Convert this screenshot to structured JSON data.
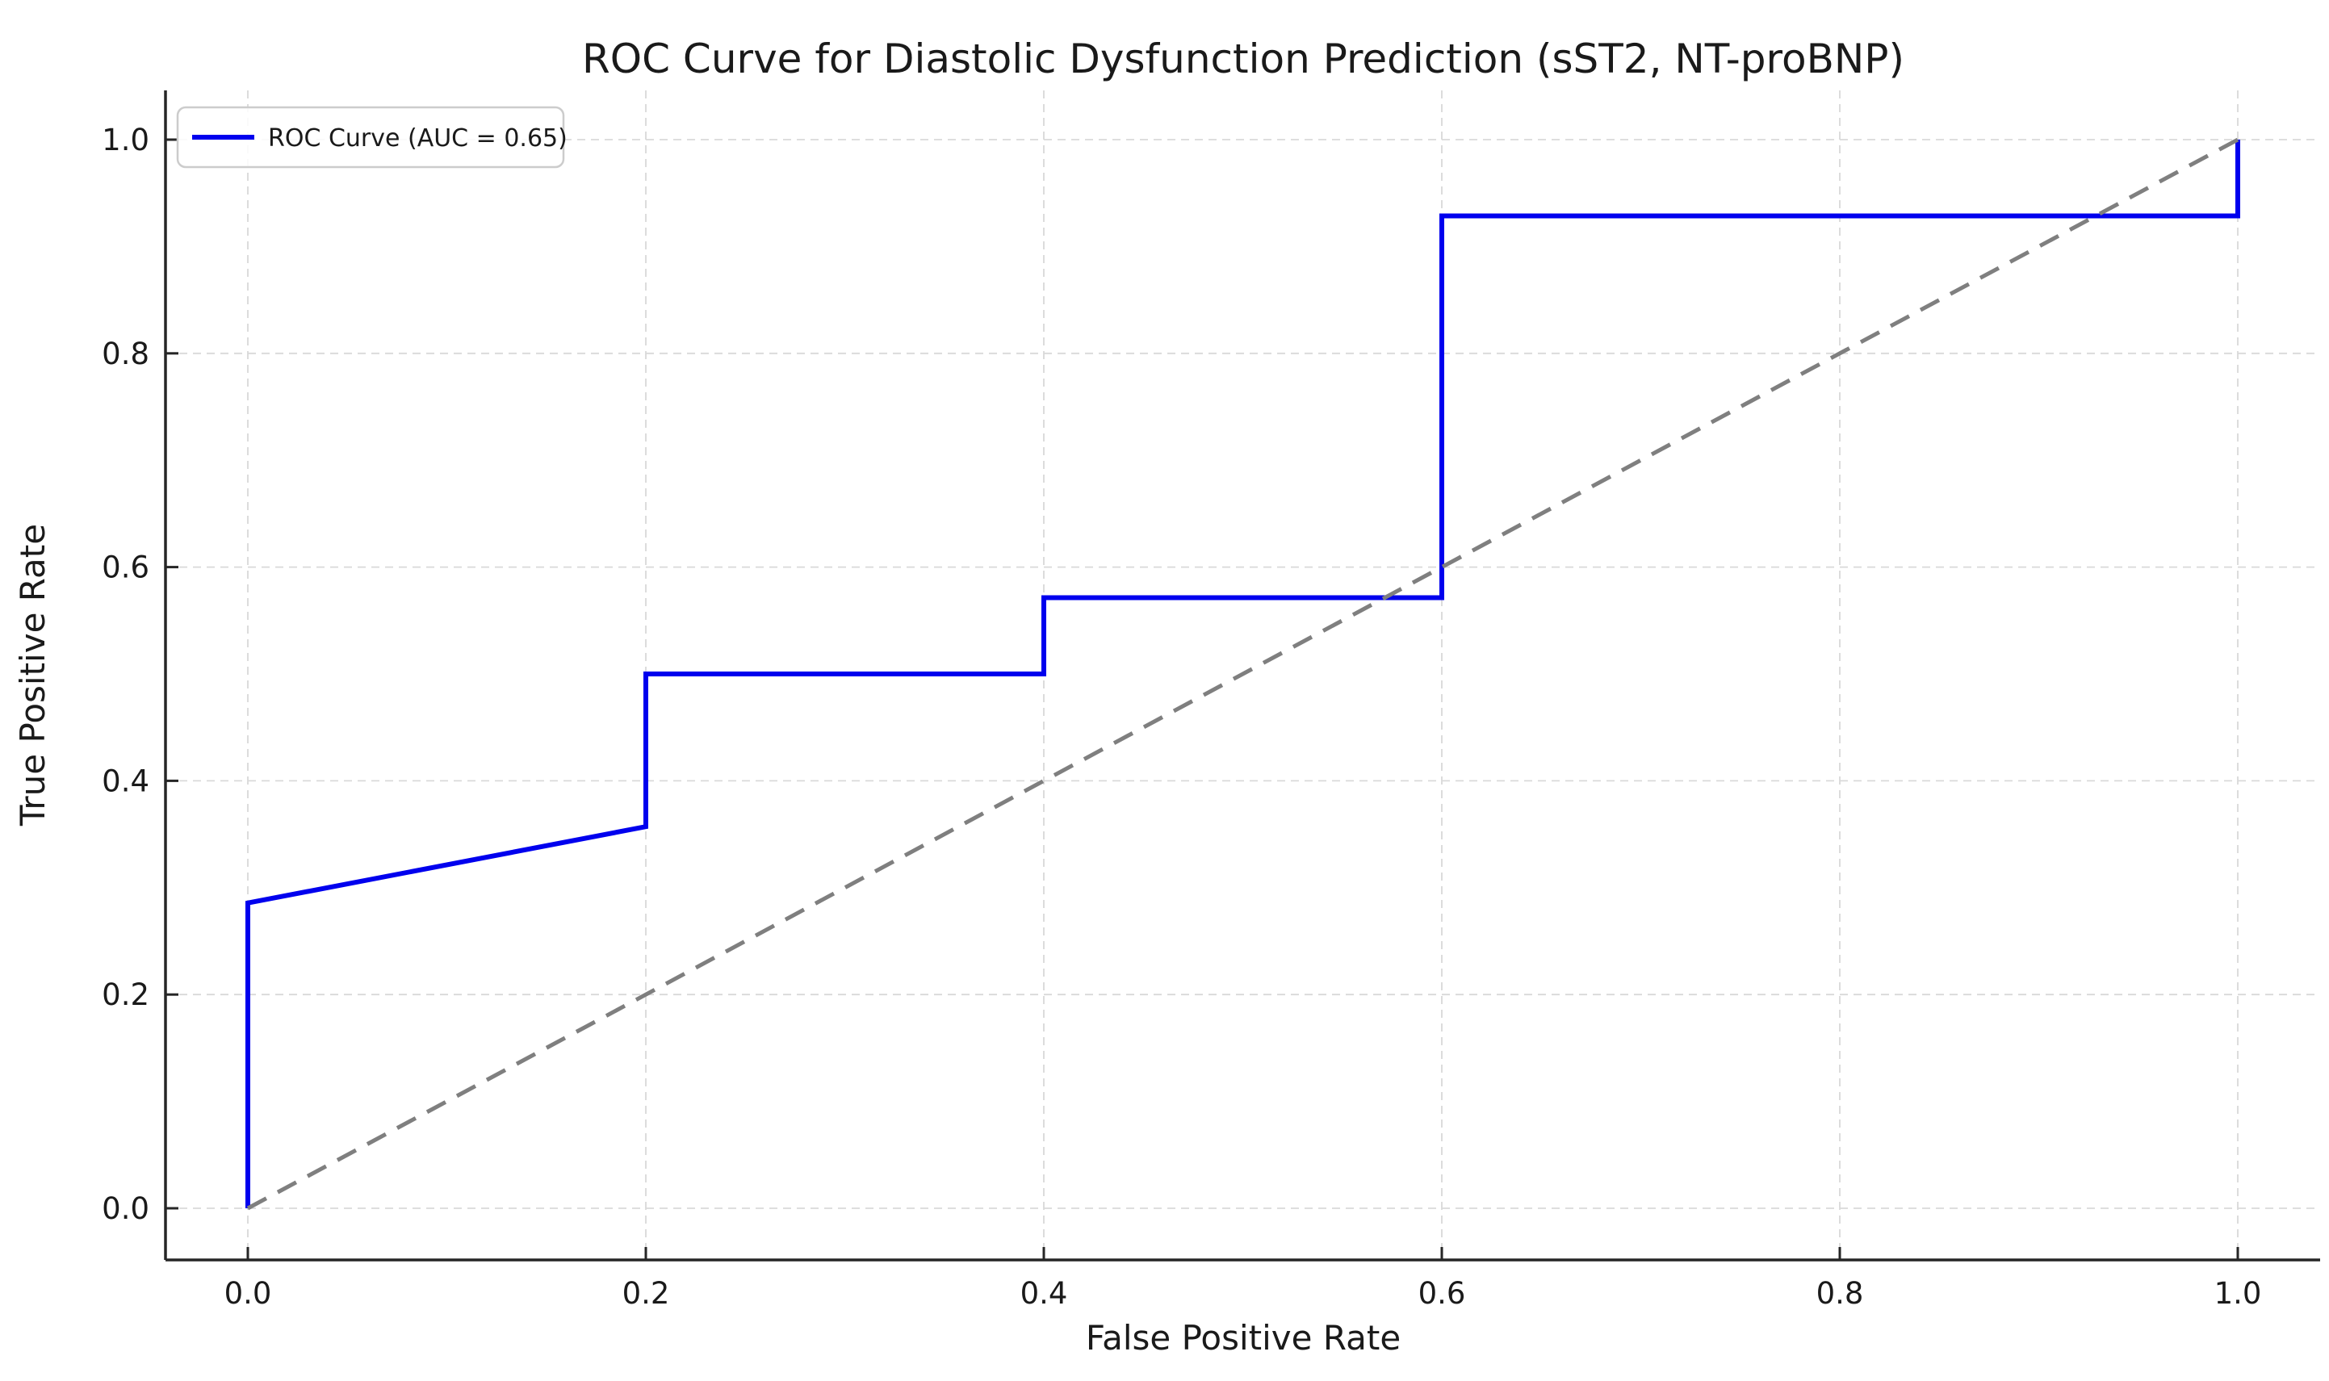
{
  "chart_data": {
    "type": "line",
    "title": "ROC Curve for Diastolic Dysfunction Prediction (sST2, NT-proBNP)",
    "xlabel": "False Positive Rate",
    "ylabel": "True Positive Rate",
    "xlim": [
      -0.05,
      1.05
    ],
    "ylim": [
      -0.05,
      1.05
    ],
    "grid": true,
    "grid_style": "dashed-light",
    "x_ticks": [
      0.0,
      0.2,
      0.4,
      0.6,
      0.8,
      1.0
    ],
    "y_ticks": [
      0.0,
      0.2,
      0.4,
      0.6,
      0.8,
      1.0
    ],
    "tick_decimals": 1,
    "auc": 0.65,
    "legend": {
      "position": "upper-left",
      "entries": [
        {
          "label": "ROC Curve (AUC = 0.65)",
          "color": "#0000ee",
          "style": "solid"
        }
      ]
    },
    "series": [
      {
        "name": "roc-curve",
        "color": "#0000ee",
        "style": "solid",
        "width": 6,
        "points": [
          [
            0.0,
            0.0
          ],
          [
            0.0,
            0.2857
          ],
          [
            0.2,
            0.3571
          ],
          [
            0.2,
            0.5
          ],
          [
            0.4,
            0.5
          ],
          [
            0.4,
            0.5714
          ],
          [
            0.6,
            0.5714
          ],
          [
            0.6,
            0.9286
          ],
          [
            1.0,
            0.9286
          ],
          [
            1.0,
            1.0
          ]
        ]
      },
      {
        "name": "chance-diagonal",
        "color": "#7f7f7f",
        "style": "dashed",
        "width": 5,
        "points": [
          [
            0.0,
            0.0
          ],
          [
            1.0,
            1.0
          ]
        ]
      }
    ]
  },
  "colors": {
    "background": "#ffffff",
    "spine": "#262626",
    "grid": "#d9d9d9",
    "text": "#1a1a1a",
    "legend_border": "#cccccc",
    "roc_blue": "#0000ee",
    "diagonal_gray": "#7f7f7f"
  }
}
